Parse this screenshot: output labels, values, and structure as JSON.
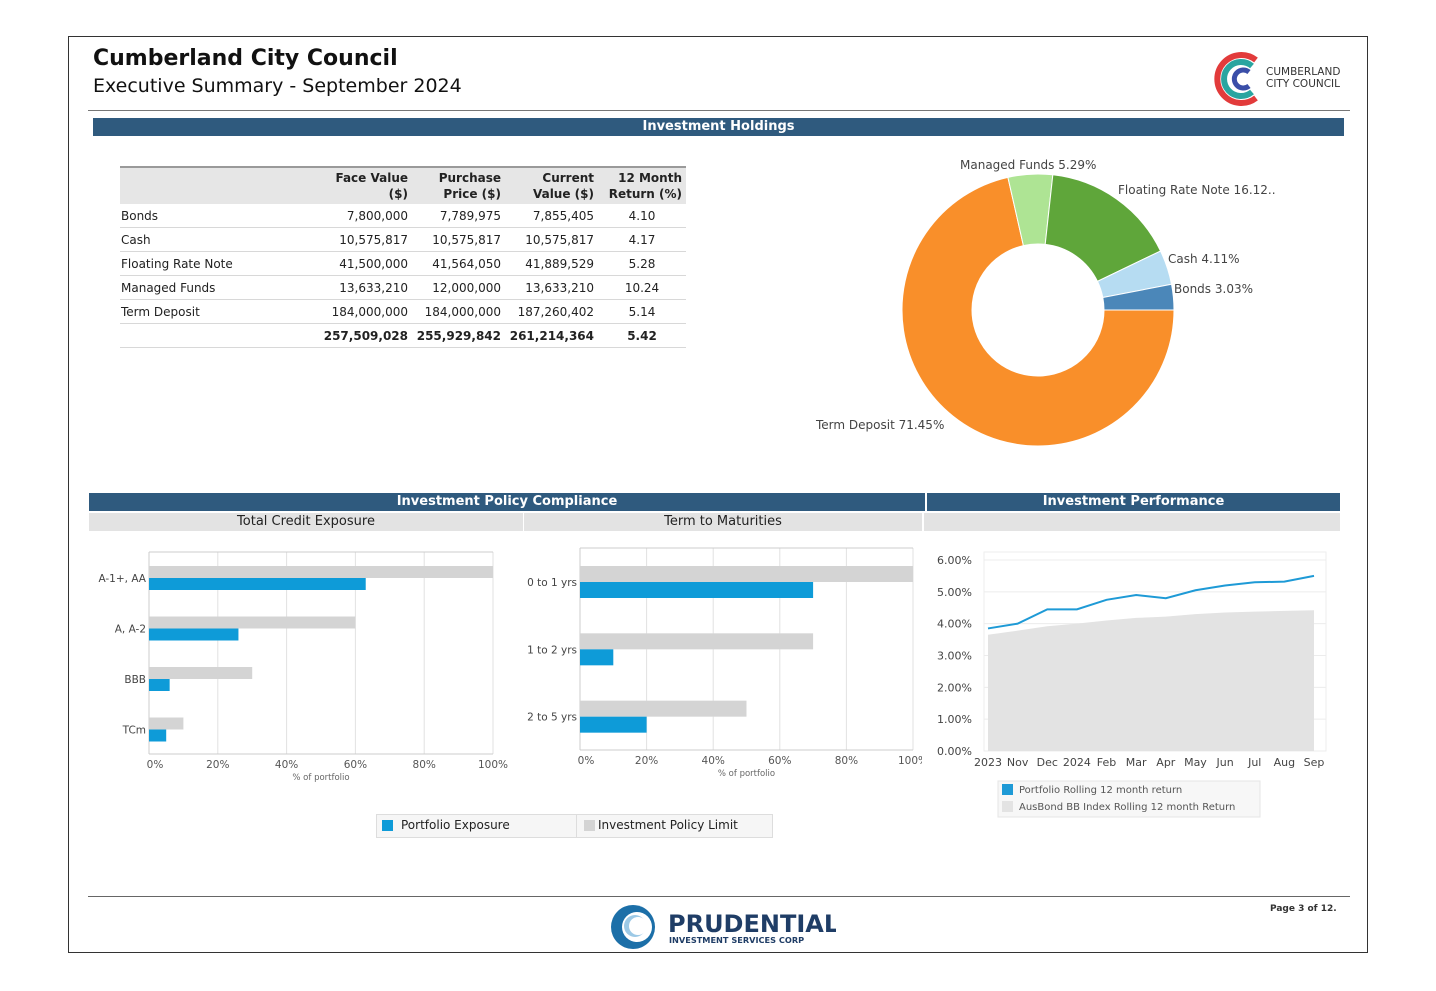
{
  "header": {
    "title": "Cumberland City Council",
    "subtitle": "Executive Summary - September 2024",
    "logo_text_line1": "CUMBERLAND",
    "logo_text_line2": "CITY COUNCIL"
  },
  "holdings": {
    "section_title": "Investment Holdings",
    "columns": [
      "",
      "Face Value ($)",
      "Purchase Price ($)",
      "Current Value ($)",
      "12 Month Return (%)"
    ],
    "col_head": {
      "face": "Face Value ($)",
      "purchase_1": "Purchase",
      "purchase_2": "Price ($)",
      "current_1": "Current",
      "current_2": "Value ($)",
      "return_1": "12 Month",
      "return_2": "Return (%)"
    },
    "rows": [
      {
        "category": "Bonds",
        "face": "7,800,000",
        "purchase": "7,789,975",
        "current": "7,855,405",
        "return": "4.10"
      },
      {
        "category": "Cash",
        "face": "10,575,817",
        "purchase": "10,575,817",
        "current": "10,575,817",
        "return": "4.17"
      },
      {
        "category": "Floating Rate Note",
        "face": "41,500,000",
        "purchase": "41,564,050",
        "current": "41,889,529",
        "return": "5.28"
      },
      {
        "category": "Managed Funds",
        "face": "13,633,210",
        "purchase": "12,000,000",
        "current": "13,633,210",
        "return": "10.24"
      },
      {
        "category": "Term Deposit",
        "face": "184,000,000",
        "purchase": "184,000,000",
        "current": "187,260,402",
        "return": "5.14"
      }
    ],
    "total": {
      "face": "257,509,028",
      "purchase": "255,929,842",
      "current": "261,214,364",
      "return": "5.42"
    }
  },
  "compliance": {
    "section_title": "Investment Policy Compliance",
    "credit_title": "Total Credit Exposure",
    "maturity_title": "Term to Maturities",
    "legend_portfolio": "Portfolio Exposure",
    "legend_limit": "Investment Policy Limit"
  },
  "performance": {
    "section_title": "Investment Performance"
  },
  "footer": {
    "brand": "PRUDENTIAL",
    "brand_sub": "INVESTMENT SERVICES CORP",
    "page": "Page 3 of 12."
  },
  "colors": {
    "header_bar": "#2f5a7e",
    "portfolio": "#0e9bd8",
    "limit": "#d4d4d4",
    "term_deposit": "#f98f2a",
    "managed_funds": "#aee494",
    "frn": "#5fa63a",
    "cash": "#b6dcf2",
    "bonds": "#4b87b9"
  },
  "chart_data": [
    {
      "type": "pie",
      "title": "",
      "labels": [
        "Term Deposit",
        "Managed Funds",
        "Floating Rate Note",
        "Cash",
        "Bonds"
      ],
      "label_texts": [
        "Term Deposit 71.45%",
        "Managed Funds 5.29%",
        "Floating Rate Note 16.12..",
        "Cash 4.11%",
        "Bonds 3.03%"
      ],
      "values": [
        71.45,
        5.29,
        16.12,
        4.11,
        3.03
      ],
      "colors": [
        "#f98f2a",
        "#aee494",
        "#5fa63a",
        "#b6dcf2",
        "#4b87b9"
      ],
      "donut": true
    },
    {
      "type": "bar",
      "orientation": "horizontal",
      "title": "Total Credit Exposure",
      "categories": [
        "A-1+, AA",
        "A, A-2",
        "BBB",
        "TCm"
      ],
      "series": [
        {
          "name": "Investment Policy Limit",
          "values": [
            100,
            60,
            30,
            10
          ]
        },
        {
          "name": "Portfolio Exposure",
          "values": [
            63,
            26,
            6,
            5
          ]
        }
      ],
      "xlabel": "% of portfolio",
      "xticks": [
        "0%",
        "20%",
        "40%",
        "60%",
        "80%",
        "100%"
      ],
      "xlim": [
        0,
        100
      ]
    },
    {
      "type": "bar",
      "orientation": "horizontal",
      "title": "Term to Maturities",
      "categories": [
        "0 to 1 yrs",
        "1 to 2 yrs",
        "2 to 5 yrs"
      ],
      "series": [
        {
          "name": "Investment Policy Limit",
          "values": [
            100,
            70,
            50
          ]
        },
        {
          "name": "Portfolio Exposure",
          "values": [
            70,
            10,
            20
          ]
        }
      ],
      "xlabel": "% of portfolio",
      "xticks": [
        "0%",
        "20%",
        "40%",
        "60%",
        "80%",
        "100%"
      ],
      "xlim": [
        0,
        100
      ]
    },
    {
      "type": "line",
      "title": "Investment Performance",
      "x": [
        "2023",
        "Nov",
        "Dec",
        "2024",
        "Feb",
        "Mar",
        "Apr",
        "May",
        "Jun",
        "Jul",
        "Aug",
        "Sep"
      ],
      "series": [
        {
          "name": "Portfolio Rolling 12 month return",
          "type": "line",
          "values": [
            3.85,
            4.0,
            4.45,
            4.45,
            4.75,
            4.9,
            4.8,
            5.05,
            5.2,
            5.3,
            5.32,
            5.5
          ]
        },
        {
          "name": "AusBond BB Index Rolling 12 month Return",
          "type": "area",
          "values": [
            3.65,
            3.78,
            3.92,
            4.0,
            4.1,
            4.18,
            4.22,
            4.3,
            4.35,
            4.38,
            4.4,
            4.42
          ]
        }
      ],
      "yticks": [
        "0.00%",
        "1.00%",
        "2.00%",
        "3.00%",
        "4.00%",
        "5.00%",
        "6.00%"
      ],
      "ylim": [
        0,
        6
      ]
    }
  ]
}
